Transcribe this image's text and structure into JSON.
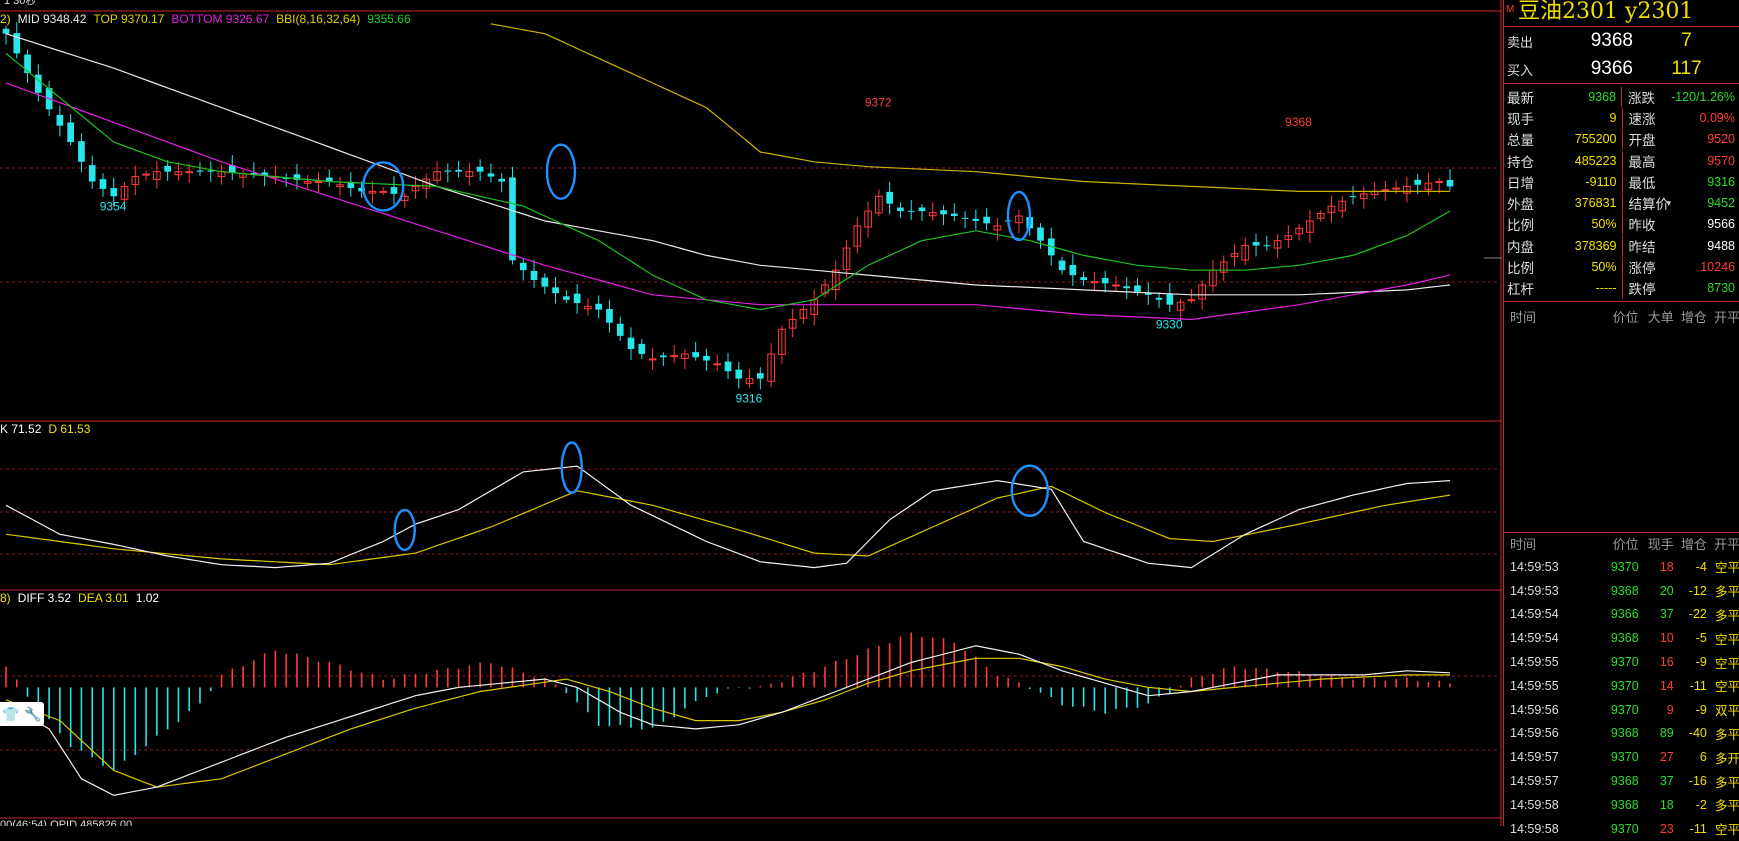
{
  "window": {
    "top_legend": "1   30秒"
  },
  "chart": {
    "main_legend": {
      "prefix": "2)",
      "mid": "MID 9348.42",
      "top": "TOP 9370.17",
      "bottom": "BOTTOM 9326.67",
      "bbi_name": "BBI(8,16,32,64)",
      "bbi_value": "9355.66"
    },
    "price_labels": {
      "low_left": "9354",
      "low_mid": "9316",
      "high_mid": "9372",
      "low_right": "9330",
      "high_right": "9368"
    },
    "kdj_legend": {
      "k": "K 71.52",
      "d": "D 61.53"
    },
    "macd_legend": {
      "prefix": "8)",
      "diff": "DIFF 3.52",
      "dea": "DEA 3.01",
      "macd": "1.02"
    },
    "bottom_legend": "00(46:54)   OPID 485826.00",
    "colors": {
      "up": "#ff3b3b",
      "down": "#27e6ea",
      "mid_line": "#e8e8e8",
      "top_line": "#c8b400",
      "bottom_line": "#e020e0",
      "bbi_line": "#20c020",
      "highlight_circle": "#1e90ff"
    },
    "tool_icons": [
      "shirt-icon",
      "wrench-icon"
    ]
  },
  "panel": {
    "marker": "M",
    "title": "豆油2301  y2301",
    "sell": {
      "label": "卖出",
      "price": "9368",
      "volume": "7"
    },
    "buy": {
      "label": "买入",
      "price": "9366",
      "volume": "117"
    },
    "stats": [
      [
        {
          "k": "最新",
          "v": "9368",
          "c": "dn"
        },
        {
          "k": "涨跌",
          "v": "-120/1.26%",
          "c": "dn"
        }
      ],
      [
        {
          "k": "现手",
          "v": "9",
          "c": "yl"
        },
        {
          "k": "速涨",
          "v": "0.09%",
          "c": "up"
        }
      ],
      [
        {
          "k": "总量",
          "v": "755200",
          "c": "yl"
        },
        {
          "k": "开盘",
          "v": "9520",
          "c": "up"
        }
      ],
      [
        {
          "k": "持仓",
          "v": "485223",
          "c": "yl"
        },
        {
          "k": "最高",
          "v": "9570",
          "c": "up"
        }
      ],
      [
        {
          "k": "日增",
          "v": "-9110",
          "c": "yl"
        },
        {
          "k": "最低",
          "v": "9316",
          "c": "dn"
        }
      ],
      [
        {
          "k": "外盘",
          "v": "376831",
          "c": "yl"
        },
        {
          "k": "结算价",
          "v": "9452",
          "c": "dn"
        }
      ],
      [
        {
          "k": "比例",
          "v": "50%",
          "c": "yl"
        },
        {
          "k": "昨收",
          "v": "9566",
          "c": "wh"
        }
      ],
      [
        {
          "k": "内盘",
          "v": "378369",
          "c": "yl"
        },
        {
          "k": "昨结",
          "v": "9488",
          "c": "wh"
        }
      ],
      [
        {
          "k": "比例",
          "v": "50%",
          "c": "yl"
        },
        {
          "k": "涨停",
          "v": "10246",
          "c": "up"
        }
      ],
      [
        {
          "k": "杠杆",
          "v": "-----",
          "c": "yl"
        },
        {
          "k": "跌停",
          "v": "8730",
          "c": "dn"
        }
      ]
    ],
    "ticks_header1": [
      "时间",
      "价位",
      "大单",
      "增仓",
      "开平"
    ],
    "ticks_header2": [
      "时间",
      "价位",
      "现手",
      "增仓",
      "开平"
    ],
    "ticks": [
      {
        "t": "14:59:53",
        "p": "9370",
        "pc": "dn",
        "q": "18",
        "qc": "up",
        "z": "-4",
        "n": "空平"
      },
      {
        "t": "14:59:53",
        "p": "9368",
        "pc": "dn",
        "q": "20",
        "qc": "dn",
        "z": "-12",
        "n": "多平"
      },
      {
        "t": "14:59:54",
        "p": "9366",
        "pc": "dn",
        "q": "37",
        "qc": "dn",
        "z": "-22",
        "n": "多平"
      },
      {
        "t": "14:59:54",
        "p": "9368",
        "pc": "dn",
        "q": "10",
        "qc": "up",
        "z": "-5",
        "n": "空平"
      },
      {
        "t": "14:59:55",
        "p": "9370",
        "pc": "dn",
        "q": "16",
        "qc": "up",
        "z": "-9",
        "n": "空平"
      },
      {
        "t": "14:59:55",
        "p": "9370",
        "pc": "dn",
        "q": "14",
        "qc": "up",
        "z": "-11",
        "n": "空平"
      },
      {
        "t": "14:59:56",
        "p": "9370",
        "pc": "dn",
        "q": "9",
        "qc": "up",
        "z": "-9",
        "n": "双平"
      },
      {
        "t": "14:59:56",
        "p": "9368",
        "pc": "dn",
        "q": "89",
        "qc": "dn",
        "z": "-40",
        "n": "多平"
      },
      {
        "t": "14:59:57",
        "p": "9370",
        "pc": "dn",
        "q": "27",
        "qc": "up",
        "z": "6",
        "n": "多开"
      },
      {
        "t": "14:59:57",
        "p": "9368",
        "pc": "dn",
        "q": "37",
        "qc": "dn",
        "z": "-16",
        "n": "多平"
      },
      {
        "t": "14:59:58",
        "p": "9368",
        "pc": "dn",
        "q": "18",
        "qc": "dn",
        "z": "-2",
        "n": "多平"
      },
      {
        "t": "14:59:58",
        "p": "9370",
        "pc": "dn",
        "q": "23",
        "qc": "up",
        "z": "-11",
        "n": "空平"
      }
    ]
  },
  "chart_data": {
    "type": "candlestick",
    "ylim": [
      9310,
      9392
    ],
    "close_path": [
      [
        0,
        9388
      ],
      [
        3,
        9376
      ],
      [
        6,
        9366
      ],
      [
        8,
        9358
      ],
      [
        10,
        9355
      ],
      [
        12,
        9359
      ],
      [
        14,
        9360
      ],
      [
        16,
        9360
      ],
      [
        20,
        9360
      ],
      [
        25,
        9359
      ],
      [
        28,
        9358
      ],
      [
        30,
        9358
      ],
      [
        33,
        9356
      ],
      [
        35,
        9356
      ],
      [
        37,
        9355
      ],
      [
        38,
        9357
      ],
      [
        40,
        9360
      ],
      [
        42,
        9360
      ],
      [
        44,
        9360
      ],
      [
        46,
        9358
      ],
      [
        47,
        9342
      ],
      [
        49,
        9338
      ],
      [
        52,
        9334
      ],
      [
        55,
        9332
      ],
      [
        58,
        9324
      ],
      [
        60,
        9322
      ],
      [
        63,
        9323
      ],
      [
        66,
        9321
      ],
      [
        68,
        9318
      ],
      [
        70,
        9318
      ],
      [
        72,
        9328
      ],
      [
        75,
        9334
      ],
      [
        77,
        9340
      ],
      [
        79,
        9349
      ],
      [
        81,
        9355
      ],
      [
        83,
        9352
      ],
      [
        85,
        9352
      ],
      [
        88,
        9351
      ],
      [
        90,
        9350
      ],
      [
        92,
        9349
      ],
      [
        94,
        9351
      ],
      [
        96,
        9346
      ],
      [
        98,
        9340
      ],
      [
        100,
        9338
      ],
      [
        103,
        9337
      ],
      [
        106,
        9335
      ],
      [
        108,
        9333
      ],
      [
        110,
        9334
      ],
      [
        112,
        9340
      ],
      [
        115,
        9345
      ],
      [
        117,
        9345
      ],
      [
        119,
        9347
      ],
      [
        121,
        9350
      ],
      [
        123,
        9353
      ],
      [
        125,
        9355
      ],
      [
        127,
        9356
      ],
      [
        130,
        9357
      ],
      [
        133,
        9358
      ],
      [
        134,
        9357
      ]
    ],
    "mid_path": [
      [
        0,
        9388
      ],
      [
        10,
        9381
      ],
      [
        20,
        9373
      ],
      [
        30,
        9365
      ],
      [
        40,
        9357
      ],
      [
        50,
        9350
      ],
      [
        60,
        9346
      ],
      [
        65,
        9343
      ],
      [
        70,
        9341
      ],
      [
        75,
        9340
      ],
      [
        80,
        9339
      ],
      [
        90,
        9337
      ],
      [
        100,
        9336
      ],
      [
        110,
        9335
      ],
      [
        120,
        9335
      ],
      [
        130,
        9336
      ],
      [
        134,
        9337
      ]
    ],
    "top_path": [
      [
        45,
        9390
      ],
      [
        50,
        9388
      ],
      [
        60,
        9378
      ],
      [
        65,
        9373
      ],
      [
        70,
        9364
      ],
      [
        75,
        9362
      ],
      [
        80,
        9361
      ],
      [
        90,
        9360
      ],
      [
        100,
        9358
      ],
      [
        110,
        9357
      ],
      [
        120,
        9356
      ],
      [
        125,
        9356
      ],
      [
        130,
        9356
      ],
      [
        134,
        9356
      ]
    ],
    "bottom_path": [
      [
        0,
        9378
      ],
      [
        10,
        9370
      ],
      [
        20,
        9362
      ],
      [
        30,
        9355
      ],
      [
        40,
        9348
      ],
      [
        50,
        9341
      ],
      [
        60,
        9335
      ],
      [
        65,
        9334
      ],
      [
        70,
        9333
      ],
      [
        80,
        9333
      ],
      [
        90,
        9333
      ],
      [
        100,
        9331
      ],
      [
        110,
        9330
      ],
      [
        120,
        9333
      ],
      [
        130,
        9337
      ],
      [
        134,
        9339
      ]
    ],
    "bbi_path": [
      [
        0,
        9384
      ],
      [
        5,
        9375
      ],
      [
        10,
        9366
      ],
      [
        15,
        9362
      ],
      [
        20,
        9360
      ],
      [
        30,
        9358
      ],
      [
        40,
        9357
      ],
      [
        48,
        9353
      ],
      [
        55,
        9346
      ],
      [
        60,
        9339
      ],
      [
        65,
        9334
      ],
      [
        70,
        9332
      ],
      [
        75,
        9334
      ],
      [
        80,
        9341
      ],
      [
        85,
        9346
      ],
      [
        90,
        9348
      ],
      [
        95,
        9346
      ],
      [
        100,
        9343
      ],
      [
        105,
        9341
      ],
      [
        110,
        9340
      ],
      [
        115,
        9340
      ],
      [
        120,
        9341
      ],
      [
        125,
        9343
      ],
      [
        130,
        9347
      ],
      [
        134,
        9352
      ]
    ],
    "kdj_ylim": [
      0,
      100
    ],
    "k_path": [
      [
        0,
        55
      ],
      [
        5,
        35
      ],
      [
        10,
        28
      ],
      [
        15,
        20
      ],
      [
        20,
        14
      ],
      [
        25,
        12
      ],
      [
        30,
        15
      ],
      [
        35,
        30
      ],
      [
        38,
        42
      ],
      [
        42,
        52
      ],
      [
        48,
        78
      ],
      [
        53,
        82
      ],
      [
        58,
        55
      ],
      [
        65,
        30
      ],
      [
        70,
        16
      ],
      [
        75,
        12
      ],
      [
        78,
        15
      ],
      [
        82,
        45
      ],
      [
        86,
        65
      ],
      [
        92,
        72
      ],
      [
        97,
        66
      ],
      [
        100,
        30
      ],
      [
        106,
        15
      ],
      [
        110,
        12
      ],
      [
        115,
        35
      ],
      [
        120,
        52
      ],
      [
        125,
        62
      ],
      [
        130,
        70
      ],
      [
        134,
        72
      ]
    ],
    "d_path": [
      [
        0,
        35
      ],
      [
        10,
        25
      ],
      [
        20,
        18
      ],
      [
        30,
        14
      ],
      [
        38,
        22
      ],
      [
        45,
        40
      ],
      [
        53,
        65
      ],
      [
        60,
        55
      ],
      [
        68,
        38
      ],
      [
        75,
        22
      ],
      [
        80,
        20
      ],
      [
        86,
        40
      ],
      [
        92,
        60
      ],
      [
        97,
        68
      ],
      [
        102,
        50
      ],
      [
        108,
        32
      ],
      [
        112,
        30
      ],
      [
        120,
        42
      ],
      [
        128,
        55
      ],
      [
        134,
        62
      ]
    ],
    "macd_ylim": [
      -30,
      22
    ],
    "diff_path": [
      [
        0,
        -4
      ],
      [
        4,
        -10
      ],
      [
        7,
        -22
      ],
      [
        10,
        -26
      ],
      [
        14,
        -24
      ],
      [
        20,
        -18
      ],
      [
        26,
        -12
      ],
      [
        32,
        -7
      ],
      [
        38,
        -2
      ],
      [
        42,
        0
      ],
      [
        50,
        2
      ],
      [
        53,
        0
      ],
      [
        57,
        -6
      ],
      [
        60,
        -9
      ],
      [
        64,
        -10
      ],
      [
        68,
        -9
      ],
      [
        72,
        -6
      ],
      [
        76,
        -2
      ],
      [
        80,
        2
      ],
      [
        84,
        6
      ],
      [
        90,
        10
      ],
      [
        94,
        8
      ],
      [
        98,
        4
      ],
      [
        102,
        1
      ],
      [
        106,
        -2
      ],
      [
        110,
        -1
      ],
      [
        114,
        1
      ],
      [
        118,
        3
      ],
      [
        122,
        3
      ],
      [
        126,
        3
      ],
      [
        130,
        4
      ],
      [
        134,
        3.5
      ]
    ],
    "dea_path": [
      [
        0,
        -3
      ],
      [
        5,
        -8
      ],
      [
        10,
        -20
      ],
      [
        14,
        -24
      ],
      [
        20,
        -22
      ],
      [
        26,
        -16
      ],
      [
        32,
        -10
      ],
      [
        38,
        -5
      ],
      [
        44,
        -1
      ],
      [
        52,
        2
      ],
      [
        56,
        -1
      ],
      [
        60,
        -5
      ],
      [
        64,
        -8
      ],
      [
        68,
        -8
      ],
      [
        72,
        -6
      ],
      [
        76,
        -3
      ],
      [
        80,
        1
      ],
      [
        84,
        4
      ],
      [
        90,
        7
      ],
      [
        94,
        7
      ],
      [
        98,
        5
      ],
      [
        102,
        2
      ],
      [
        106,
        0
      ],
      [
        110,
        -1
      ],
      [
        114,
        0
      ],
      [
        118,
        1
      ],
      [
        122,
        2
      ],
      [
        126,
        2.5
      ],
      [
        130,
        3
      ],
      [
        134,
        3
      ]
    ],
    "macd_hist_path": [
      [
        0,
        5
      ],
      [
        2,
        -2
      ],
      [
        6,
        -14
      ],
      [
        10,
        -20
      ],
      [
        14,
        -12
      ],
      [
        18,
        -4
      ],
      [
        20,
        3
      ],
      [
        25,
        9
      ],
      [
        30,
        6
      ],
      [
        35,
        2
      ],
      [
        40,
        4
      ],
      [
        45,
        6
      ],
      [
        50,
        2
      ],
      [
        52,
        -1
      ],
      [
        55,
        -9
      ],
      [
        60,
        -10
      ],
      [
        65,
        -2
      ],
      [
        68,
        0
      ],
      [
        70,
        0
      ],
      [
        75,
        4
      ],
      [
        80,
        9
      ],
      [
        84,
        13
      ],
      [
        88,
        11
      ],
      [
        92,
        3
      ],
      [
        95,
        0
      ],
      [
        98,
        -4
      ],
      [
        102,
        -6
      ],
      [
        106,
        -4
      ],
      [
        108,
        -1
      ],
      [
        110,
        2
      ],
      [
        114,
        5
      ],
      [
        118,
        4
      ],
      [
        122,
        3
      ],
      [
        126,
        2
      ],
      [
        130,
        2
      ],
      [
        134,
        1
      ]
    ]
  }
}
